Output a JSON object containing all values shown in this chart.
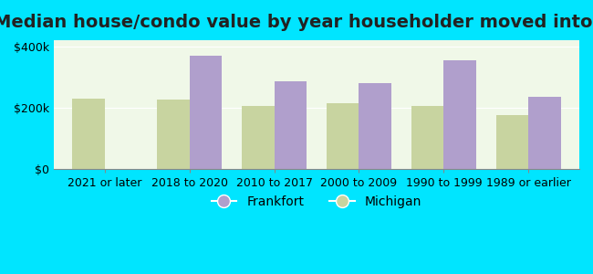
{
  "title": "Median house/condo value by year householder moved into unit",
  "categories": [
    "2021 or later",
    "2018 to 2020",
    "2010 to 2017",
    "2000 to 2009",
    "1990 to 1999",
    "1989 or earlier"
  ],
  "frankfort": [
    0,
    370000,
    285000,
    280000,
    355000,
    235000
  ],
  "michigan": [
    230000,
    225000,
    205000,
    215000,
    205000,
    175000
  ],
  "frankfort_color": "#b09fcc",
  "michigan_color": "#c8d4a0",
  "background_outer": "#00e5ff",
  "background_inner": "#f0f8e8",
  "ylim": [
    0,
    420000
  ],
  "yticks": [
    0,
    200000,
    400000
  ],
  "ytick_labels": [
    "$0",
    "$200k",
    "$400k"
  ],
  "bar_width": 0.38,
  "legend_frankfort": "Frankfort",
  "legend_michigan": "Michigan",
  "title_fontsize": 14,
  "tick_fontsize": 9,
  "legend_fontsize": 10
}
